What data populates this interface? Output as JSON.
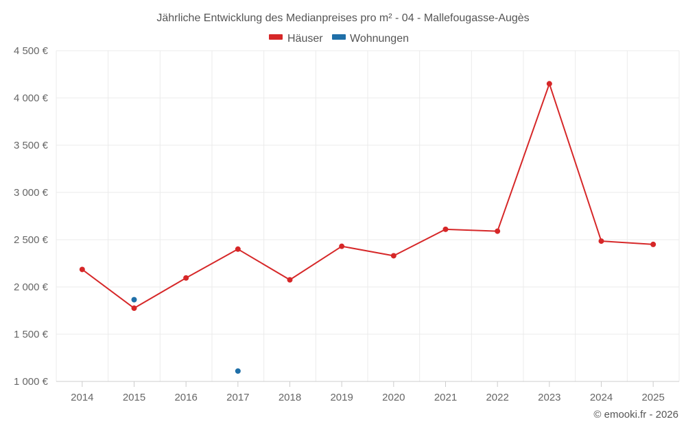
{
  "chart_data": {
    "type": "line",
    "title": "Jährliche Entwicklung des Medianpreises pro m² - 04 - Mallefougasse-Augès",
    "categories": [
      "2014",
      "2015",
      "2016",
      "2017",
      "2018",
      "2019",
      "2020",
      "2021",
      "2022",
      "2023",
      "2024",
      "2025"
    ],
    "series": [
      {
        "name": "Häuser",
        "color": "#d62728",
        "values": [
          2185,
          1775,
          2095,
          2400,
          2075,
          2430,
          2330,
          2610,
          2590,
          4150,
          2485,
          2450
        ]
      },
      {
        "name": "Wohnungen",
        "color": "#1f6fa8",
        "values": [
          null,
          1865,
          null,
          1110,
          null,
          null,
          null,
          null,
          null,
          null,
          null,
          null
        ]
      }
    ],
    "ylim": [
      1000,
      4500
    ],
    "yticks": [
      1000,
      1500,
      2000,
      2500,
      3000,
      3500,
      4000,
      4500
    ],
    "ytick_labels": [
      "1 000 €",
      "1 500 €",
      "2 000 €",
      "2 500 €",
      "3 000 €",
      "3 500 €",
      "4 000 €",
      "4 500 €"
    ],
    "legend_position": "top-center",
    "grid": true
  },
  "credit": "© emooki.fr - 2026"
}
